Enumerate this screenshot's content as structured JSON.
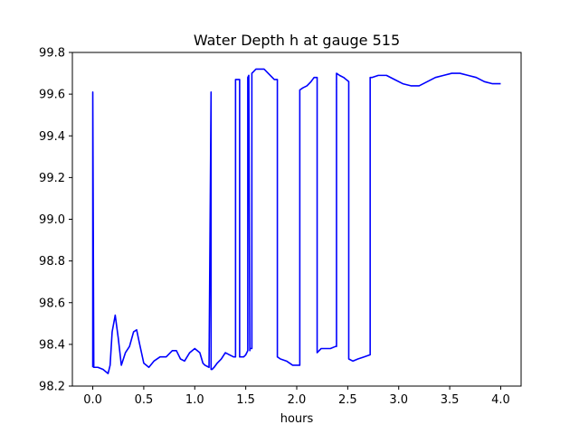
{
  "chart_data": {
    "type": "line",
    "title": "Water Depth h at gauge 515",
    "xlabel": "hours",
    "ylabel": "",
    "xlim": [
      -0.2,
      4.2
    ],
    "ylim": [
      98.2,
      99.8
    ],
    "xticks": [
      0.0,
      0.5,
      1.0,
      1.5,
      2.0,
      2.5,
      3.0,
      3.5,
      4.0
    ],
    "xtick_labels": [
      "0.0",
      "0.5",
      "1.0",
      "1.5",
      "2.0",
      "2.5",
      "3.0",
      "3.5",
      "4.0"
    ],
    "yticks": [
      98.2,
      98.4,
      98.6,
      98.8,
      99.0,
      99.2,
      99.4,
      99.6,
      99.8
    ],
    "ytick_labels": [
      "98.2",
      "98.4",
      "98.6",
      "98.8",
      "99.0",
      "99.2",
      "99.4",
      "99.6",
      "99.8"
    ],
    "grid": false,
    "series": [
      {
        "color": "#0000ff",
        "x": [
          0.0,
          0.0,
          0.01,
          0.05,
          0.1,
          0.15,
          0.17,
          0.19,
          0.22,
          0.25,
          0.28,
          0.32,
          0.36,
          0.4,
          0.43,
          0.46,
          0.5,
          0.55,
          0.6,
          0.66,
          0.72,
          0.78,
          0.82,
          0.86,
          0.9,
          0.95,
          1.0,
          1.05,
          1.08,
          1.1,
          1.14,
          1.16,
          1.16,
          1.17,
          1.19,
          1.22,
          1.26,
          1.3,
          1.34,
          1.38,
          1.4,
          1.4,
          1.44,
          1.44,
          1.48,
          1.5,
          1.52,
          1.52,
          1.53,
          1.54,
          1.54,
          1.56,
          1.56,
          1.58,
          1.6,
          1.64,
          1.68,
          1.72,
          1.78,
          1.81,
          1.81,
          1.84,
          1.9,
          1.96,
          2.0,
          2.03,
          2.03,
          2.06,
          2.1,
          2.14,
          2.17,
          2.2,
          2.2,
          2.24,
          2.28,
          2.33,
          2.38,
          2.39,
          2.39,
          2.42,
          2.46,
          2.51,
          2.51,
          2.55,
          2.6,
          2.66,
          2.72,
          2.72,
          2.74,
          2.8,
          2.88,
          2.96,
          3.04,
          3.12,
          3.2,
          3.28,
          3.36,
          3.44,
          3.52,
          3.6,
          3.68,
          3.76,
          3.84,
          3.92,
          4.0
        ],
        "y": [
          98.29,
          99.61,
          98.29,
          98.29,
          98.28,
          98.26,
          98.3,
          98.46,
          98.54,
          98.43,
          98.3,
          98.36,
          98.39,
          98.46,
          98.47,
          98.4,
          98.31,
          98.29,
          98.32,
          98.34,
          98.34,
          98.37,
          98.37,
          98.33,
          98.32,
          98.36,
          98.38,
          98.36,
          98.31,
          98.3,
          98.29,
          99.61,
          98.28,
          98.28,
          98.29,
          98.31,
          98.33,
          98.36,
          98.35,
          98.34,
          98.34,
          99.67,
          99.67,
          98.34,
          98.34,
          98.35,
          98.37,
          99.68,
          99.69,
          98.37,
          98.38,
          98.38,
          99.7,
          99.71,
          99.72,
          99.72,
          99.72,
          99.7,
          99.67,
          99.67,
          98.34,
          98.33,
          98.32,
          98.3,
          98.3,
          98.3,
          99.62,
          99.63,
          99.64,
          99.66,
          99.68,
          99.68,
          98.36,
          98.38,
          98.38,
          98.38,
          98.39,
          98.39,
          99.7,
          99.69,
          99.68,
          99.66,
          98.33,
          98.32,
          98.33,
          98.34,
          98.35,
          99.68,
          99.68,
          99.69,
          99.69,
          99.67,
          99.65,
          99.64,
          99.64,
          99.66,
          99.68,
          99.69,
          99.7,
          99.7,
          99.69,
          99.68,
          99.66,
          99.65,
          99.65
        ]
      }
    ]
  }
}
